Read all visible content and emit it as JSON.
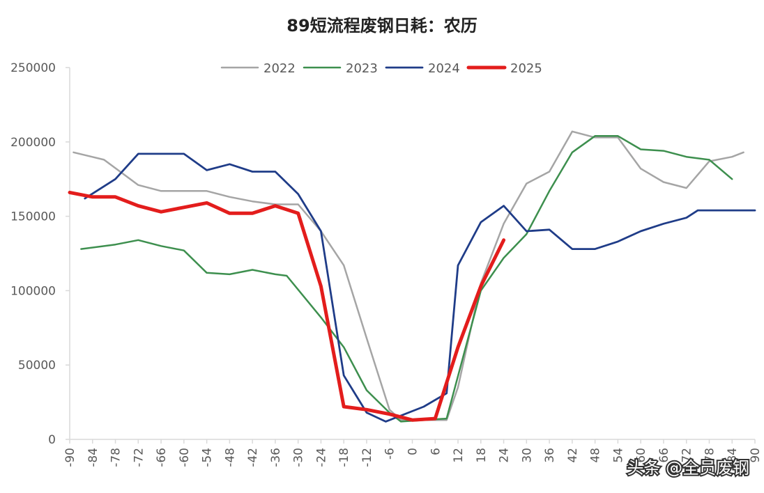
{
  "chart_data": {
    "type": "line",
    "title": "89短流程废钢日耗：农历",
    "xlabel": "",
    "ylabel": "",
    "xlim": [
      -90,
      90
    ],
    "ylim": [
      0,
      250000
    ],
    "x_ticks": [
      -90,
      -84,
      -78,
      -72,
      -66,
      -60,
      -54,
      -48,
      -42,
      -36,
      -30,
      -24,
      -18,
      -12,
      -6,
      0,
      6,
      12,
      18,
      24,
      30,
      36,
      42,
      48,
      54,
      60,
      66,
      72,
      78,
      84,
      90
    ],
    "y_ticks": [
      0,
      50000,
      100000,
      150000,
      200000,
      250000
    ],
    "x_tick_labels": [
      "-90",
      "-84",
      "-78",
      "-72",
      "-66",
      "-60",
      "-54",
      "-48",
      "-42",
      "-36",
      "-30",
      "-24",
      "-18",
      "-12",
      "-6",
      "0",
      "6",
      "12",
      "18",
      "24",
      "30",
      "36",
      "42",
      "48",
      "54",
      "60",
      "66",
      "72",
      "78",
      "84",
      "90"
    ],
    "y_tick_labels": [
      "0",
      "50000",
      "100000",
      "150000",
      "200000",
      "250000"
    ],
    "grid": false,
    "legend_position": "top",
    "series": [
      {
        "name": "2022",
        "color": "#a5a5a5",
        "width": 2.5,
        "points": [
          [
            -89,
            193000
          ],
          [
            -81,
            188000
          ],
          [
            -72,
            171000
          ],
          [
            -66,
            167000
          ],
          [
            -54,
            167000
          ],
          [
            -48,
            163000
          ],
          [
            -42,
            160000
          ],
          [
            -36,
            158000
          ],
          [
            -30,
            158000
          ],
          [
            -24,
            140000
          ],
          [
            -18,
            117000
          ],
          [
            -12,
            68000
          ],
          [
            -6,
            20000
          ],
          [
            -3,
            13000
          ],
          [
            3,
            13000
          ],
          [
            9,
            13000
          ],
          [
            12,
            35000
          ],
          [
            18,
            105000
          ],
          [
            24,
            145000
          ],
          [
            30,
            172000
          ],
          [
            36,
            180000
          ],
          [
            42,
            207000
          ],
          [
            48,
            203000
          ],
          [
            54,
            203000
          ],
          [
            60,
            182000
          ],
          [
            66,
            173000
          ],
          [
            72,
            169000
          ],
          [
            78,
            187000
          ],
          [
            84,
            190000
          ],
          [
            87,
            193000
          ]
        ]
      },
      {
        "name": "2023",
        "color": "#3d8f4e",
        "width": 2.5,
        "points": [
          [
            -87,
            128000
          ],
          [
            -78,
            131000
          ],
          [
            -72,
            134000
          ],
          [
            -66,
            130000
          ],
          [
            -60,
            127000
          ],
          [
            -54,
            112000
          ],
          [
            -48,
            111000
          ],
          [
            -42,
            114000
          ],
          [
            -36,
            111000
          ],
          [
            -33,
            110000
          ],
          [
            -24,
            82000
          ],
          [
            -18,
            62000
          ],
          [
            -12,
            33000
          ],
          [
            -6,
            18000
          ],
          [
            -3,
            12000
          ],
          [
            3,
            13000
          ],
          [
            9,
            14000
          ],
          [
            18,
            100000
          ],
          [
            24,
            122000
          ],
          [
            30,
            138000
          ],
          [
            36,
            167000
          ],
          [
            42,
            193000
          ],
          [
            48,
            204000
          ],
          [
            54,
            204000
          ],
          [
            60,
            195000
          ],
          [
            66,
            194000
          ],
          [
            72,
            190000
          ],
          [
            78,
            188000
          ],
          [
            84,
            175000
          ]
        ]
      },
      {
        "name": "2024",
        "color": "#1f3c88",
        "width": 2.8,
        "points": [
          [
            -86,
            162000
          ],
          [
            -78,
            175000
          ],
          [
            -72,
            192000
          ],
          [
            -66,
            192000
          ],
          [
            -60,
            192000
          ],
          [
            -54,
            181000
          ],
          [
            -48,
            185000
          ],
          [
            -42,
            180000
          ],
          [
            -36,
            180000
          ],
          [
            -30,
            165000
          ],
          [
            -24,
            140000
          ],
          [
            -18,
            43000
          ],
          [
            -12,
            18000
          ],
          [
            -7,
            12000
          ],
          [
            3,
            22000
          ],
          [
            9,
            31000
          ],
          [
            12,
            117000
          ],
          [
            18,
            146000
          ],
          [
            24,
            157000
          ],
          [
            30,
            140000
          ],
          [
            36,
            141000
          ],
          [
            42,
            128000
          ],
          [
            48,
            128000
          ],
          [
            54,
            133000
          ],
          [
            60,
            140000
          ],
          [
            66,
            145000
          ],
          [
            72,
            149000
          ],
          [
            75,
            154000
          ],
          [
            90,
            154000
          ]
        ]
      },
      {
        "name": "2025",
        "color": "#e31d1c",
        "width": 5,
        "points": [
          [
            -90,
            166000
          ],
          [
            -84,
            163000
          ],
          [
            -78,
            163000
          ],
          [
            -72,
            157000
          ],
          [
            -66,
            153000
          ],
          [
            -60,
            156000
          ],
          [
            -54,
            159000
          ],
          [
            -48,
            152000
          ],
          [
            -42,
            152000
          ],
          [
            -36,
            157000
          ],
          [
            -30,
            152000
          ],
          [
            -24,
            103000
          ],
          [
            -18,
            22000
          ],
          [
            -12,
            20000
          ],
          [
            -6,
            17000
          ],
          [
            0,
            13000
          ],
          [
            6,
            14000
          ],
          [
            12,
            62000
          ],
          [
            18,
            103000
          ],
          [
            24,
            134000
          ]
        ]
      }
    ]
  },
  "watermark": "头条 @全员废钢"
}
